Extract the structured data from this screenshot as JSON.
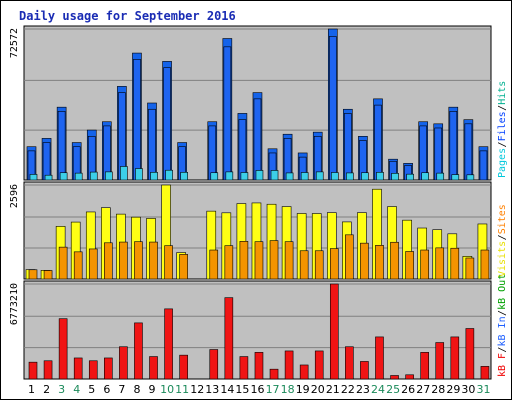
{
  "title": "Daily usage for September 2016",
  "chart_data": [
    {
      "type": "bar",
      "name": "pages-files-hits",
      "categories": [
        "1",
        "2",
        "3",
        "4",
        "5",
        "6",
        "7",
        "8",
        "9",
        "10",
        "11",
        "12",
        "13",
        "14",
        "15",
        "16",
        "17",
        "18",
        "19",
        "20",
        "21",
        "22",
        "23",
        "24",
        "25",
        "26",
        "27",
        "28",
        "29",
        "30",
        "31"
      ],
      "weekend_days": [
        "3",
        "4",
        "10",
        "11",
        "17",
        "18",
        "24",
        "25",
        "31"
      ],
      "ymax_label": "72572",
      "ylim": [
        0,
        72572
      ],
      "legend": [
        {
          "label": "Pages",
          "color": "#00c8dc"
        },
        {
          "label": "Files",
          "color": "#0040ff"
        },
        {
          "label": "Hits",
          "color": "#00b090"
        }
      ],
      "separator": "/",
      "series": [
        {
          "name": "Hits",
          "color": "#1463ea",
          "values": [
            16000,
            20000,
            35000,
            18000,
            24000,
            28000,
            45000,
            61000,
            37000,
            57000,
            18000,
            0,
            28000,
            68000,
            32000,
            42000,
            15000,
            22000,
            13000,
            23000,
            72572,
            34000,
            21000,
            39000,
            10000,
            8000,
            28000,
            27000,
            35000,
            29000,
            16000
          ]
        },
        {
          "name": "Files",
          "color": "#1e64f0",
          "values": [
            14000,
            18000,
            33000,
            16000,
            21000,
            26000,
            42000,
            58000,
            34000,
            54000,
            16000,
            0,
            26000,
            64000,
            29000,
            39000,
            13000,
            20000,
            11000,
            21000,
            69000,
            32000,
            19000,
            36000,
            9000,
            7000,
            26000,
            25000,
            33000,
            27000,
            14000
          ]
        },
        {
          "name": "Pages",
          "color": "#3ccfe8",
          "values": [
            2700,
            2300,
            3500,
            3300,
            3800,
            3900,
            6500,
            5500,
            3700,
            4700,
            3700,
            0,
            3500,
            3900,
            3600,
            4600,
            4600,
            3400,
            3600,
            3900,
            3600,
            3400,
            3500,
            3700,
            3200,
            2800,
            3500,
            3300,
            2600,
            2500,
            0
          ]
        }
      ]
    },
    {
      "type": "bar",
      "name": "visits-sites",
      "ymax_label": "2596",
      "ylim": [
        0,
        2596
      ],
      "legend": [
        {
          "label": "Visits",
          "color": "#e8e000"
        },
        {
          "label": "Sites",
          "color": "#ff8000"
        }
      ],
      "separator": "/",
      "series": [
        {
          "name": "Visits",
          "color": "#ffff14",
          "values": [
            260,
            240,
            1454,
            1572,
            1852,
            1970,
            1792,
            1708,
            1673,
            2596,
            730,
            0,
            1874,
            1828,
            2083,
            2101,
            2065,
            2000,
            1809,
            1808,
            1833,
            1577,
            1833,
            2480,
            2000,
            1625,
            1408,
            1362,
            1248,
            626,
            1520
          ]
        },
        {
          "name": "Sites",
          "color": "#f49400",
          "values": [
            255,
            235,
            880,
            750,
            830,
            1000,
            1020,
            1030,
            1020,
            920,
            680,
            0,
            800,
            920,
            1040,
            1030,
            1060,
            1030,
            780,
            780,
            840,
            1220,
            990,
            930,
            1015,
            760,
            800,
            860,
            850,
            580,
            800
          ]
        }
      ]
    },
    {
      "type": "bar",
      "name": "kb-in-out-f",
      "ymax_label": "6773210",
      "ylim": [
        0,
        6773210
      ],
      "legend": [
        {
          "label": "kB F",
          "color": "#f00000"
        },
        {
          "label": "kB In",
          "color": "#2060ff"
        },
        {
          "label": "kB Out",
          "color": "#00a000"
        }
      ],
      "separator": "/",
      "series": [
        {
          "name": "kB F",
          "color": "#f01414",
          "values": [
            1200000,
            1300000,
            4300000,
            1500000,
            1300000,
            1500000,
            2300000,
            4000000,
            1600000,
            5000000,
            1700000,
            0,
            2100000,
            5800000,
            1600000,
            1900000,
            700000,
            2000000,
            1000000,
            2000000,
            6773210,
            2300000,
            1250000,
            3000000,
            250000,
            300000,
            1900000,
            2600000,
            3000000,
            3600000,
            900000
          ]
        }
      ]
    }
  ]
}
